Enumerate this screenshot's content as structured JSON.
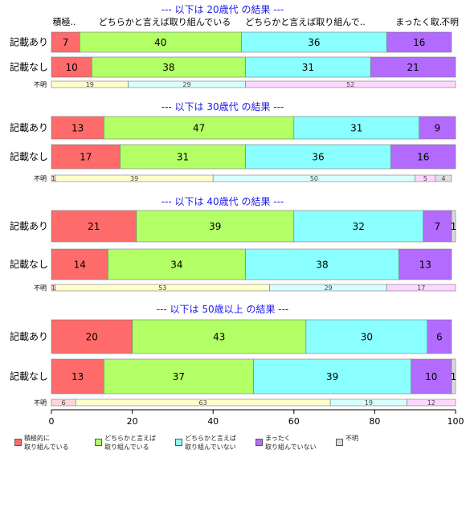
{
  "chart_data": {
    "type": "bar",
    "orientation": "horizontal",
    "stacked": "percent",
    "xlim": [
      0,
      100
    ],
    "x_ticks": [
      "0",
      "20",
      "40",
      "60",
      "80",
      "100"
    ],
    "column_headers": [
      "積極..",
      "どちらかと言えば取り組んでいる",
      "どちらかと言えば取り組んで..",
      "まったく取..",
      "不明"
    ],
    "colors": [
      "#ff6b6b",
      "#b3ff66",
      "#8affff",
      "#b36bff",
      "#d9d9d9"
    ],
    "unknown_colors": [
      "#ffd6d6",
      "#ffffcc",
      "#d6ffff",
      "#ffd6ff",
      "#e0e0e0"
    ],
    "legend": [
      "積極的に\n取り組んでいる",
      "どちらかと言えば\n取り組んでいる",
      "どちらかと言えば\n取り組んでいない",
      "まったく\n取り組んでいない",
      "不明"
    ],
    "panels": [
      {
        "title": "--- 以下は 20歳代 の結果 ---",
        "rows": [
          {
            "label": "記載あり",
            "values": [
              7,
              40,
              36,
              16,
              0
            ],
            "labels": [
              "7",
              "40",
              "36",
              "16",
              ""
            ]
          },
          {
            "label": "記載なし",
            "values": [
              10,
              38,
              31,
              21,
              0
            ],
            "labels": [
              "10",
              "38",
              "31",
              "21",
              ""
            ]
          },
          {
            "label": "不明",
            "values": [
              0,
              19,
              29,
              52,
              0
            ],
            "labels": [
              "",
              "19",
              "29",
              "52",
              ""
            ]
          }
        ]
      },
      {
        "title": "--- 以下は 30歳代 の結果 ---",
        "rows": [
          {
            "label": "記載あり",
            "values": [
              13,
              47,
              31,
              9,
              0
            ],
            "labels": [
              "13",
              "47",
              "31",
              "9",
              ""
            ]
          },
          {
            "label": "記載なし",
            "values": [
              17,
              31,
              36,
              16,
              0
            ],
            "labels": [
              "17",
              "31",
              "36",
              "16",
              ""
            ]
          },
          {
            "label": "不明",
            "values": [
              1,
              39,
              50,
              5,
              4
            ],
            "labels": [
              "1",
              "39",
              "50",
              "5",
              "4"
            ]
          }
        ]
      },
      {
        "title": "--- 以下は 40歳代 の結果 ---",
        "rows": [
          {
            "label": "記載あり",
            "values": [
              21,
              39,
              32,
              7,
              1
            ],
            "labels": [
              "21",
              "39",
              "32",
              "7",
              "1"
            ]
          },
          {
            "label": "記載なし",
            "values": [
              14,
              34,
              38,
              13,
              0
            ],
            "labels": [
              "14",
              "34",
              "38",
              "13",
              ""
            ]
          },
          {
            "label": "不明",
            "values": [
              1,
              53,
              29,
              17,
              0
            ],
            "labels": [
              "1",
              "53",
              "29",
              "17",
              ""
            ]
          }
        ]
      },
      {
        "title": "--- 以下は 50歳以上 の結果 ---",
        "rows": [
          {
            "label": "記載あり",
            "values": [
              20,
              43,
              30,
              6,
              0
            ],
            "labels": [
              "20",
              "43",
              "30",
              "6",
              ""
            ]
          },
          {
            "label": "記載なし",
            "values": [
              13,
              37,
              39,
              10,
              1
            ],
            "labels": [
              "13",
              "37",
              "39",
              "10",
              "1"
            ]
          },
          {
            "label": "不明",
            "values": [
              6,
              63,
              19,
              12,
              0
            ],
            "labels": [
              "6",
              "63",
              "19",
              "12",
              ""
            ]
          }
        ]
      }
    ]
  }
}
